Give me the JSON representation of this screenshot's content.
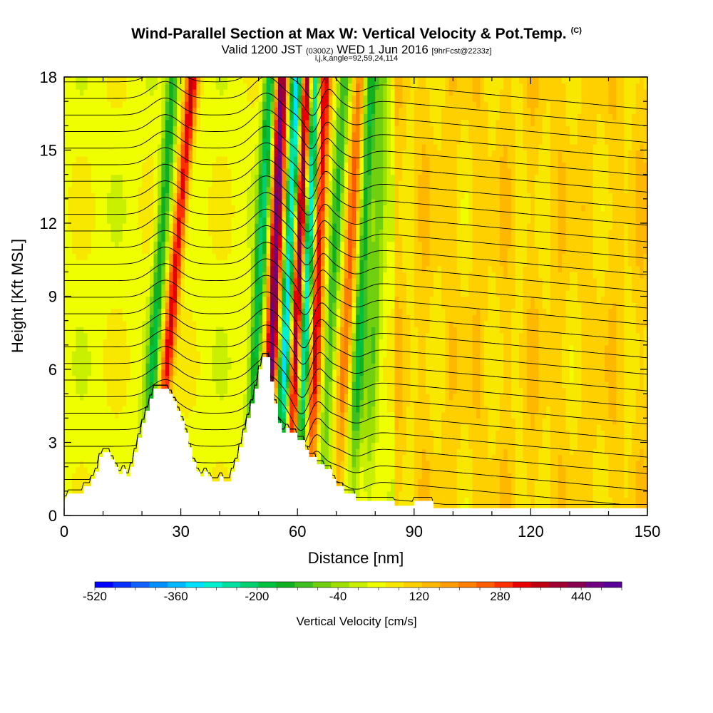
{
  "header": {
    "title": "Wind-Parallel Section at Max W: Vertical Velocity & Pot.Temp.",
    "copyright": "(C)",
    "valid_prefix": "Valid 1200 JST",
    "valid_utc": "(0300Z)",
    "valid_date": "WED 1 Jun 2016",
    "forecast": "[9hrFcst@2233z]",
    "indices": "i,j,k,angle=92,59,24,114"
  },
  "chart_data": {
    "type": "heatmap",
    "xlabel": "Distance [nm]",
    "ylabel": "Height [Kft MSL]",
    "xlim": [
      0,
      150
    ],
    "ylim": [
      0,
      18
    ],
    "x_ticks": [
      0,
      30,
      60,
      90,
      120,
      150
    ],
    "y_ticks": [
      0,
      3,
      6,
      9,
      12,
      15,
      18
    ],
    "colorbar": {
      "label": "Vertical Velocity [cm/s]",
      "range": [
        -520,
        520
      ],
      "step": 40,
      "tick_labels": [
        "-520",
        "-360",
        "-200",
        "-40",
        "120",
        "280",
        "440"
      ],
      "colors": [
        "#0000ff",
        "#0a30ff",
        "#1060ff",
        "#0090ff",
        "#00b8ff",
        "#00e0ff",
        "#00f0d0",
        "#00e0a0",
        "#00d070",
        "#00c040",
        "#10b020",
        "#40c020",
        "#70d010",
        "#a0e000",
        "#c8f000",
        "#f0ff00",
        "#f8e800",
        "#ffd000",
        "#ffb800",
        "#ff9c00",
        "#ff8000",
        "#ff5c00",
        "#ff3000",
        "#e80000",
        "#c00010",
        "#a00030",
        "#880050",
        "#700080",
        "#580098"
      ]
    },
    "terrain_profile": [
      [
        0,
        0.6
      ],
      [
        1,
        0.9
      ],
      [
        5,
        0.9
      ],
      [
        5,
        1.2
      ],
      [
        7,
        1.2
      ],
      [
        7,
        1.5
      ],
      [
        8,
        1.5
      ],
      [
        8,
        1.8
      ],
      [
        9,
        1.8
      ],
      [
        9,
        2.4
      ],
      [
        10,
        2.4
      ],
      [
        10,
        2.6
      ],
      [
        12,
        2.6
      ],
      [
        12,
        2.3
      ],
      [
        13,
        2.3
      ],
      [
        13,
        2.0
      ],
      [
        14,
        2.0
      ],
      [
        14,
        1.7
      ],
      [
        15,
        1.7
      ],
      [
        15,
        1.9
      ],
      [
        16,
        1.9
      ],
      [
        16,
        1.6
      ],
      [
        17,
        1.6
      ],
      [
        17,
        2.0
      ],
      [
        18,
        2.0
      ],
      [
        18,
        2.6
      ],
      [
        19,
        2.6
      ],
      [
        19,
        3.2
      ],
      [
        20,
        3.2
      ],
      [
        20,
        3.8
      ],
      [
        21,
        3.8
      ],
      [
        21,
        4.3
      ],
      [
        22,
        4.3
      ],
      [
        22,
        4.8
      ],
      [
        23,
        4.8
      ],
      [
        23,
        5.2
      ],
      [
        27,
        5.2
      ],
      [
        27,
        5.0
      ],
      [
        28,
        5.0
      ],
      [
        28,
        4.7
      ],
      [
        29,
        4.7
      ],
      [
        29,
        4.3
      ],
      [
        30,
        4.3
      ],
      [
        30,
        3.9
      ],
      [
        31,
        3.9
      ],
      [
        31,
        3.4
      ],
      [
        32,
        3.4
      ],
      [
        32,
        2.8
      ],
      [
        33,
        2.8
      ],
      [
        33,
        2.2
      ],
      [
        34,
        2.2
      ],
      [
        34,
        1.8
      ],
      [
        35,
        1.8
      ],
      [
        35,
        1.6
      ],
      [
        36,
        1.6
      ],
      [
        36,
        1.8
      ],
      [
        37,
        1.8
      ],
      [
        37,
        1.6
      ],
      [
        38,
        1.6
      ],
      [
        38,
        1.4
      ],
      [
        40,
        1.4
      ],
      [
        40,
        1.6
      ],
      [
        41,
        1.6
      ],
      [
        41,
        1.4
      ],
      [
        43,
        1.4
      ],
      [
        43,
        1.8
      ],
      [
        44,
        1.8
      ],
      [
        44,
        2.2
      ],
      [
        45,
        2.2
      ],
      [
        45,
        2.8
      ],
      [
        46,
        2.8
      ],
      [
        46,
        3.4
      ],
      [
        47,
        3.4
      ],
      [
        47,
        4.0
      ],
      [
        48,
        4.0
      ],
      [
        48,
        4.6
      ],
      [
        49,
        4.6
      ],
      [
        49,
        5.2
      ],
      [
        50,
        5.2
      ],
      [
        50,
        6.0
      ],
      [
        51,
        6.0
      ],
      [
        51,
        6.5
      ],
      [
        53,
        6.5
      ],
      [
        53,
        5.5
      ],
      [
        54,
        5.5
      ],
      [
        54,
        4.6
      ],
      [
        55,
        4.6
      ],
      [
        55,
        3.8
      ],
      [
        56,
        3.8
      ],
      [
        56,
        3.4
      ],
      [
        57,
        3.4
      ],
      [
        57,
        3.6
      ],
      [
        58,
        3.6
      ],
      [
        58,
        3.4
      ],
      [
        60,
        3.4
      ],
      [
        60,
        3.1
      ],
      [
        62,
        3.1
      ],
      [
        62,
        2.7
      ],
      [
        63,
        2.7
      ],
      [
        63,
        2.4
      ],
      [
        65,
        2.4
      ],
      [
        65,
        2.1
      ],
      [
        67,
        2.1
      ],
      [
        67,
        1.9
      ],
      [
        69,
        1.9
      ],
      [
        69,
        1.5
      ],
      [
        70,
        1.5
      ],
      [
        70,
        1.2
      ],
      [
        72,
        1.2
      ],
      [
        72,
        0.9
      ],
      [
        75,
        0.9
      ],
      [
        75,
        0.6
      ],
      [
        85,
        0.6
      ],
      [
        85,
        0.4
      ],
      [
        90,
        0.4
      ],
      [
        90,
        0.6
      ],
      [
        95,
        0.6
      ],
      [
        95,
        0.3
      ],
      [
        150,
        0.3
      ]
    ],
    "updrafts_cm_s": [
      {
        "x_at_0kft": 23,
        "x_at_18kft": 33,
        "peak": 300
      },
      {
        "x_at_0kft": 52,
        "x_at_18kft": 56,
        "peak": 440
      },
      {
        "x_at_0kft": 58,
        "x_at_18kft": 62.5,
        "peak": 480
      },
      {
        "x_at_0kft": 63,
        "x_at_18kft": 67,
        "peak": 320
      },
      {
        "x_at_0kft": 70,
        "x_at_18kft": 76,
        "peak": 200
      }
    ],
    "downdrafts_cm_s": [
      {
        "x_at_0kft": 20,
        "x_at_18kft": 28,
        "peak": -200
      },
      {
        "x_at_0kft": 47,
        "x_at_18kft": 53,
        "peak": -240
      },
      {
        "x_at_0kft": 55,
        "x_at_18kft": 60,
        "peak": -380
      },
      {
        "x_at_0kft": 60,
        "x_at_18kft": 64.5,
        "peak": -420
      },
      {
        "x_at_0kft": 66,
        "x_at_18kft": 72,
        "peak": -160
      },
      {
        "x_at_0kft": 74,
        "x_at_18kft": 79,
        "peak": -200
      },
      {
        "x_at_0kft": 78,
        "x_at_18kft": 82,
        "peak": -120
      }
    ],
    "theta_contour_count": 26
  }
}
